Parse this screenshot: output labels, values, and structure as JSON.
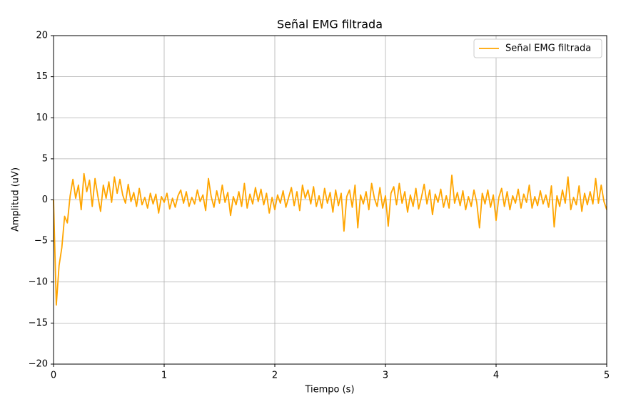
{
  "chart_data": {
    "type": "line",
    "title": "Señal EMG filtrada",
    "x_label": "Tiempo (s)",
    "y_label": "Amplitud (uV)",
    "xlim": [
      0,
      5
    ],
    "xticks": [
      0,
      1,
      2,
      3,
      4,
      5
    ],
    "ylim": [
      -20,
      20
    ],
    "yticks": [
      {
        "value": -20,
        "label": "−20"
      },
      {
        "value": -15,
        "label": "−15"
      },
      {
        "value": -10,
        "label": "−10"
      },
      {
        "value": -5,
        "label": "−5"
      },
      0,
      5,
      10,
      15,
      20
    ],
    "grid": true,
    "legend": "upper right",
    "x": [
      0,
      0.025,
      0.05,
      0.075,
      0.1,
      0.125,
      0.15,
      0.175,
      0.2,
      0.225,
      0.25,
      0.275,
      0.3,
      0.325,
      0.35,
      0.375,
      0.4,
      0.425,
      0.45,
      0.475,
      0.5,
      0.525,
      0.55,
      0.575,
      0.6,
      0.625,
      0.65,
      0.675,
      0.7,
      0.725,
      0.75,
      0.775,
      0.8,
      0.825,
      0.85,
      0.875,
      0.9,
      0.925,
      0.95,
      0.975,
      1.0,
      1.025,
      1.05,
      1.075,
      1.1,
      1.125,
      1.15,
      1.175,
      1.2,
      1.225,
      1.25,
      1.275,
      1.3,
      1.325,
      1.35,
      1.375,
      1.4,
      1.425,
      1.45,
      1.475,
      1.5,
      1.525,
      1.55,
      1.575,
      1.6,
      1.625,
      1.65,
      1.675,
      1.7,
      1.725,
      1.75,
      1.775,
      1.8,
      1.825,
      1.85,
      1.875,
      1.9,
      1.925,
      1.95,
      1.975,
      2.0,
      2.025,
      2.05,
      2.075,
      2.1,
      2.125,
      2.15,
      2.175,
      2.2,
      2.225,
      2.25,
      2.275,
      2.3,
      2.325,
      2.35,
      2.375,
      2.4,
      2.425,
      2.45,
      2.475,
      2.5,
      2.525,
      2.55,
      2.575,
      2.6,
      2.625,
      2.65,
      2.675,
      2.7,
      2.725,
      2.75,
      2.775,
      2.8,
      2.825,
      2.85,
      2.875,
      2.9,
      2.925,
      2.95,
      2.975,
      3.0,
      3.025,
      3.05,
      3.075,
      3.1,
      3.125,
      3.15,
      3.175,
      3.2,
      3.225,
      3.25,
      3.275,
      3.3,
      3.325,
      3.35,
      3.375,
      3.4,
      3.425,
      3.45,
      3.475,
      3.5,
      3.525,
      3.55,
      3.575,
      3.6,
      3.625,
      3.65,
      3.675,
      3.7,
      3.725,
      3.75,
      3.775,
      3.8,
      3.825,
      3.85,
      3.875,
      3.9,
      3.925,
      3.95,
      3.975,
      4.0,
      4.025,
      4.05,
      4.075,
      4.1,
      4.125,
      4.15,
      4.175,
      4.2,
      4.225,
      4.25,
      4.275,
      4.3,
      4.325,
      4.35,
      4.375,
      4.4,
      4.425,
      4.45,
      4.475,
      4.5,
      4.525,
      4.55,
      4.575,
      4.6,
      4.625,
      4.65,
      4.675,
      4.7,
      4.725,
      4.75,
      4.775,
      4.8,
      4.825,
      4.85,
      4.875,
      4.9,
      4.925,
      4.95,
      4.975,
      5.0
    ],
    "series": [
      {
        "name": "Señal EMG filtrada",
        "color": "#ffa500",
        "values": [
          0.0,
          -12.8,
          -8.0,
          -5.8,
          -2.0,
          -2.8,
          0.5,
          2.5,
          0.2,
          1.8,
          -1.2,
          3.2,
          1.0,
          2.4,
          -0.8,
          2.6,
          0.5,
          -1.4,
          1.8,
          0.2,
          2.2,
          -0.3,
          2.8,
          0.8,
          2.5,
          0.6,
          -0.4,
          1.9,
          -0.2,
          0.9,
          -0.8,
          1.4,
          -0.6,
          0.3,
          -1.0,
          0.8,
          -0.5,
          0.7,
          -1.6,
          0.4,
          -0.3,
          0.8,
          -1.1,
          0.2,
          -0.9,
          0.5,
          1.2,
          -0.4,
          1.0,
          -0.8,
          0.3,
          -0.5,
          1.2,
          -0.2,
          0.6,
          -1.3,
          2.6,
          0.4,
          -0.9,
          1.1,
          -0.4,
          1.8,
          -0.3,
          0.9,
          -1.9,
          0.4,
          -0.6,
          1.0,
          -0.8,
          2.0,
          -1.0,
          0.7,
          -0.5,
          1.5,
          -0.2,
          1.3,
          -0.6,
          0.8,
          -1.6,
          0.3,
          -1.2,
          0.6,
          -0.4,
          1.1,
          -0.9,
          0.3,
          1.5,
          -0.7,
          1.0,
          -1.3,
          1.8,
          0.2,
          1.2,
          -0.5,
          1.6,
          -0.8,
          0.5,
          -1.0,
          1.4,
          -0.4,
          0.9,
          -1.5,
          1.2,
          -0.7,
          0.8,
          -3.8,
          0.4,
          1.2,
          -0.9,
          1.8,
          -3.4,
          0.6,
          -0.5,
          1.0,
          -1.2,
          2.0,
          0.2,
          -0.8,
          1.5,
          -1.0,
          0.5,
          -3.2,
          0.8,
          1.6,
          -0.6,
          2.0,
          -0.4,
          1.0,
          -1.5,
          0.6,
          -0.8,
          1.4,
          -1.1,
          0.3,
          1.9,
          -0.5,
          1.2,
          -1.8,
          0.7,
          -0.3,
          1.3,
          -0.9,
          0.5,
          -1.0,
          3.0,
          -0.4,
          0.9,
          -0.7,
          1.1,
          -1.2,
          0.4,
          -0.8,
          1.2,
          -0.3,
          -3.4,
          0.8,
          -0.5,
          1.2,
          -0.9,
          0.6,
          -2.5,
          0.3,
          1.4,
          -0.8,
          1.0,
          -1.2,
          0.5,
          -0.4,
          1.3,
          -1.0,
          0.7,
          -0.3,
          1.8,
          -1.0,
          0.4,
          -0.7,
          1.1,
          -0.5,
          0.6,
          -0.9,
          1.7,
          -3.3,
          0.5,
          -0.8,
          1.2,
          -0.4,
          2.8,
          -1.2,
          0.3,
          -0.6,
          1.7,
          -1.4,
          0.8,
          -0.6,
          1.0,
          -0.5,
          2.6,
          -0.4,
          1.8,
          -0.2,
          -1.2
        ]
      }
    ]
  }
}
